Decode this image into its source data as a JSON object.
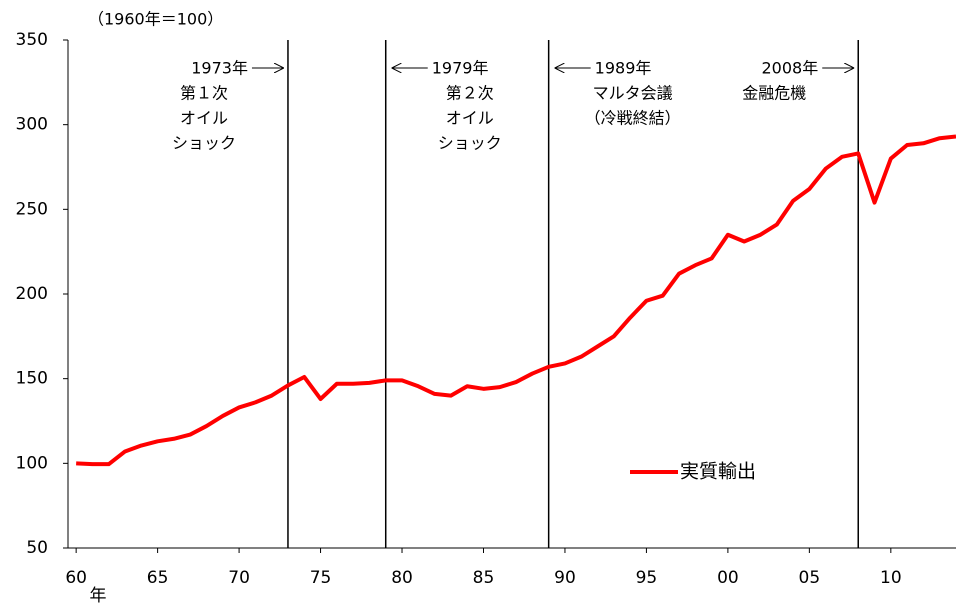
{
  "chart_data": {
    "type": "line",
    "unit_label": "（1960年＝100）",
    "x_label": "年",
    "x": [
      1960,
      1961,
      1962,
      1963,
      1964,
      1965,
      1966,
      1967,
      1968,
      1969,
      1970,
      1971,
      1972,
      1973,
      1974,
      1975,
      1976,
      1977,
      1978,
      1979,
      1980,
      1981,
      1982,
      1983,
      1984,
      1985,
      1986,
      1987,
      1988,
      1989,
      1990,
      1991,
      1992,
      1993,
      1994,
      1995,
      1996,
      1997,
      1998,
      1999,
      2000,
      2001,
      2002,
      2003,
      2004,
      2005,
      2006,
      2007,
      2008,
      2009,
      2010,
      2011,
      2012,
      2013,
      2014
    ],
    "series": [
      {
        "name": "実質輸出",
        "color": "#ff0000",
        "values": [
          100,
          99.5,
          99.5,
          107,
          110.5,
          113,
          114.5,
          117,
          122,
          128,
          133,
          136,
          140,
          146,
          151,
          138,
          147,
          147,
          147.5,
          149,
          149,
          145.5,
          141,
          140,
          145.5,
          144,
          145,
          148,
          153,
          157,
          159,
          163,
          169,
          175,
          186,
          196,
          199,
          212,
          217,
          221,
          235,
          231,
          235,
          241,
          255,
          262,
          274,
          281,
          283,
          254,
          280,
          288,
          289,
          292,
          293
        ]
      }
    ],
    "xlim": [
      1959.5,
      2014
    ],
    "ylim": [
      50,
      350
    ],
    "xticks": [
      {
        "value": 1960,
        "label": "60"
      },
      {
        "value": 1965,
        "label": "65"
      },
      {
        "value": 1970,
        "label": "70"
      },
      {
        "value": 1975,
        "label": "75"
      },
      {
        "value": 1980,
        "label": "80"
      },
      {
        "value": 1985,
        "label": "85"
      },
      {
        "value": 1990,
        "label": "90"
      },
      {
        "value": 1995,
        "label": "95"
      },
      {
        "value": 2000,
        "label": "00"
      },
      {
        "value": 2005,
        "label": "05"
      },
      {
        "value": 2010,
        "label": "10"
      }
    ],
    "yticks": [
      50,
      100,
      150,
      200,
      250,
      300,
      350
    ],
    "grid": false,
    "legend_position": "lower right",
    "annotations": [
      {
        "x": 1973,
        "arrow": "right",
        "lines": [
          "1973年",
          "第１次",
          "オイル",
          "ショック"
        ]
      },
      {
        "x": 1979,
        "arrow": "left",
        "lines": [
          "1979年",
          "第２次",
          "オイル",
          "ショック"
        ]
      },
      {
        "x": 1989,
        "arrow": "left",
        "lines": [
          "1989年",
          "マルタ会議",
          "（冷戦終結）"
        ]
      },
      {
        "x": 2008,
        "arrow": "right",
        "lines": [
          "2008年",
          "金融危機"
        ]
      }
    ]
  }
}
